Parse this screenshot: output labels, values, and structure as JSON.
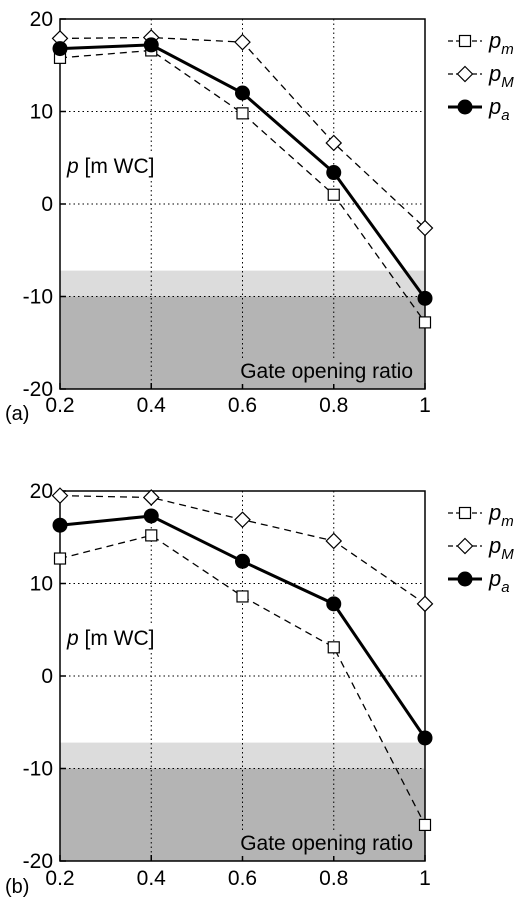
{
  "chart_data": [
    {
      "type": "line",
      "panel_label": "(a)",
      "x": [
        0.2,
        0.4,
        0.6,
        0.8,
        1
      ],
      "x_tick_labels": [
        "0.2",
        "0.4",
        "0.6",
        "0.8",
        "1"
      ],
      "y_ticks": [
        20,
        10,
        0,
        -10,
        -20
      ],
      "y_tick_labels": [
        "20",
        "10",
        "0",
        "-10",
        "-20"
      ],
      "xlim": [
        0.2,
        1
      ],
      "ylim": [
        -20,
        20
      ],
      "xlabel": "Gate opening ratio",
      "ylabel": "p [m WC]",
      "grid": true,
      "legend_position": "right",
      "shaded_bands": [
        {
          "from": -10,
          "to": -7.2,
          "color": "#dcdcdc"
        },
        {
          "from": -20,
          "to": -10,
          "color": "#b4b4b4"
        }
      ],
      "series": [
        {
          "name": "p_m",
          "legend_main": "p",
          "legend_sub": "m",
          "marker": "square",
          "style": "dashed",
          "values": [
            15.8,
            16.6,
            9.8,
            1.0,
            -12.8
          ]
        },
        {
          "name": "p_M",
          "legend_main": "p",
          "legend_sub": "M",
          "marker": "diamond",
          "style": "dashed",
          "values": [
            17.9,
            18.0,
            17.5,
            6.6,
            -2.6
          ]
        },
        {
          "name": "p_a",
          "legend_main": "p",
          "legend_sub": "a",
          "marker": "circle-filled",
          "style": "solid",
          "values": [
            16.8,
            17.2,
            12.0,
            3.4,
            -10.2
          ]
        }
      ]
    },
    {
      "type": "line",
      "panel_label": "(b)",
      "x": [
        0.2,
        0.4,
        0.6,
        0.8,
        1
      ],
      "x_tick_labels": [
        "0.2",
        "0.4",
        "0.6",
        "0.8",
        "1"
      ],
      "y_ticks": [
        20,
        10,
        0,
        -10,
        -20
      ],
      "y_tick_labels": [
        "20",
        "10",
        "0",
        "-10",
        "-20"
      ],
      "xlim": [
        0.2,
        1
      ],
      "ylim": [
        -20,
        20
      ],
      "xlabel": "Gate opening ratio",
      "ylabel": "p [m WC]",
      "grid": true,
      "legend_position": "right",
      "shaded_bands": [
        {
          "from": -10,
          "to": -7.2,
          "color": "#dcdcdc"
        },
        {
          "from": -20,
          "to": -10,
          "color": "#b4b4b4"
        }
      ],
      "series": [
        {
          "name": "p_m",
          "legend_main": "p",
          "legend_sub": "m",
          "marker": "square",
          "style": "dashed",
          "values": [
            12.7,
            15.2,
            8.6,
            3.1,
            -16.1
          ]
        },
        {
          "name": "p_M",
          "legend_main": "p",
          "legend_sub": "M",
          "marker": "diamond",
          "style": "dashed",
          "values": [
            19.5,
            19.3,
            16.9,
            14.6,
            7.8
          ]
        },
        {
          "name": "p_a",
          "legend_main": "p",
          "legend_sub": "a",
          "marker": "circle-filled",
          "style": "solid",
          "values": [
            16.3,
            17.3,
            12.4,
            7.8,
            -6.7
          ]
        }
      ]
    }
  ]
}
